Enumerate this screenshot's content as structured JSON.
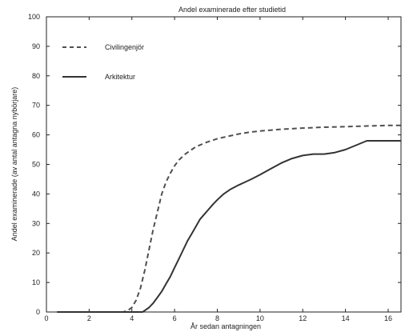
{
  "chart_data": {
    "type": "line",
    "title": "Andel examinerade efter studietid",
    "xlabel": "År sedan antagningen",
    "ylabel": "Andel examinerade (av antal antagna nybörjare)",
    "xlim": [
      0,
      16.6
    ],
    "ylim": [
      0,
      100
    ],
    "xticks": [
      0,
      2,
      4,
      6,
      8,
      10,
      12,
      14,
      16
    ],
    "yticks": [
      0,
      10,
      20,
      30,
      40,
      50,
      60,
      70,
      80,
      90,
      100
    ],
    "xtick_labels": [
      "0",
      "2",
      "4",
      "6",
      "8",
      "10",
      "12",
      "14",
      "16"
    ],
    "ytick_labels": [
      "0",
      "10",
      "20",
      "30",
      "40",
      "50",
      "60",
      "70",
      "80",
      "90",
      "100"
    ],
    "grid": false,
    "legend_position": "top-left",
    "colors": {
      "line": "#505050",
      "axis": "#222222"
    },
    "series": [
      {
        "name": "Civilingenjör",
        "style": "dashed",
        "x": [
          0.5,
          3.6,
          3.8,
          4.0,
          4.2,
          4.4,
          4.6,
          4.8,
          5.0,
          5.2,
          5.4,
          5.6,
          5.8,
          6.0,
          6.2,
          6.5,
          6.8,
          7.0,
          7.5,
          8.0,
          8.5,
          9.0,
          9.5,
          10.0,
          11.0,
          12.0,
          13.0,
          14.0,
          15.0,
          16.0,
          16.6
        ],
        "y": [
          0,
          0,
          0.5,
          1.5,
          4,
          8,
          14,
          21,
          28,
          34,
          40,
          44,
          47,
          49.5,
          51.5,
          53.5,
          55,
          56,
          57.5,
          58.7,
          59.5,
          60.3,
          60.9,
          61.3,
          61.9,
          62.3,
          62.6,
          62.8,
          63,
          63.2,
          63.2
        ]
      },
      {
        "name": "Arkitektur",
        "style": "solid",
        "x": [
          0.5,
          4.5,
          4.6,
          4.8,
          5.0,
          5.2,
          5.4,
          5.6,
          5.8,
          6.0,
          6.2,
          6.4,
          6.6,
          6.8,
          7.0,
          7.2,
          7.5,
          7.8,
          8.0,
          8.3,
          8.6,
          9.0,
          9.3,
          9.6,
          10.0,
          10.5,
          11.0,
          11.5,
          12.0,
          12.5,
          13.0,
          13.5,
          14.0,
          14.5,
          15.0,
          15.5,
          16.0,
          16.6
        ],
        "y": [
          0,
          0,
          0.5,
          1.5,
          3,
          5,
          7,
          9.5,
          12,
          15,
          18,
          21,
          24,
          26.5,
          29,
          31.5,
          34,
          36.5,
          38,
          40,
          41.5,
          43,
          44,
          45,
          46.5,
          48.5,
          50.5,
          52,
          53,
          53.5,
          53.5,
          54,
          55,
          56.5,
          58,
          58,
          58,
          58
        ]
      }
    ]
  }
}
